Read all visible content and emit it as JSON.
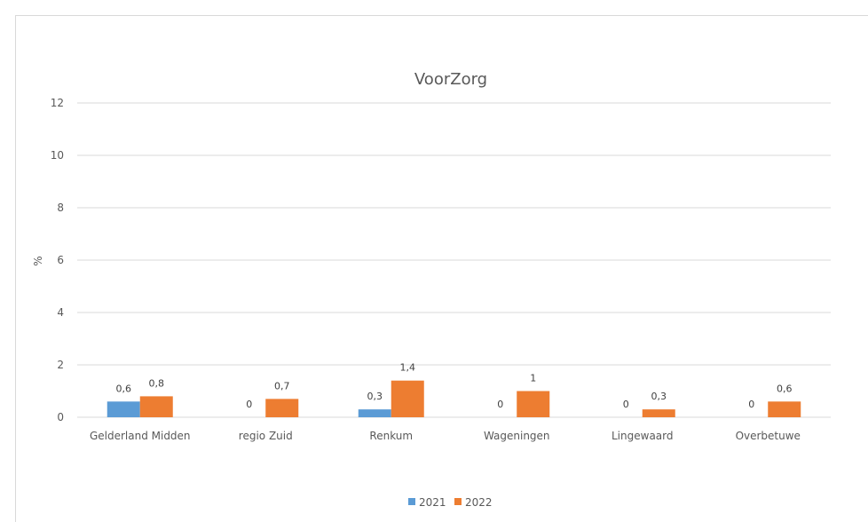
{
  "chart_data": {
    "type": "bar",
    "title": "VoorZorg",
    "xlabel": "",
    "ylabel": "%",
    "ylim": [
      0,
      12
    ],
    "yticks": [
      0,
      2,
      4,
      6,
      8,
      10,
      12
    ],
    "grid": true,
    "legend_position": "bottom",
    "categories": [
      "Gelderland Midden",
      "regio Zuid",
      "Renkum",
      "Wageningen",
      "Lingewaard",
      "Overbetuwe"
    ],
    "series": [
      {
        "name": "2021",
        "color": "#5b9bd5",
        "values": [
          0.6,
          0,
          0.3,
          0,
          0,
          0
        ],
        "labels": [
          "0,6",
          "0",
          "0,3",
          "0",
          "0",
          "0"
        ]
      },
      {
        "name": "2022",
        "color": "#ed7d31",
        "values": [
          0.8,
          0.7,
          1.4,
          1,
          0.3,
          0.6
        ],
        "labels": [
          "0,8",
          "0,7",
          "1,4",
          "1",
          "0,3",
          "0,6"
        ]
      }
    ]
  }
}
